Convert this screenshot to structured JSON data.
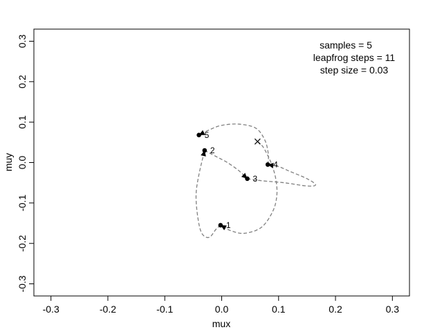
{
  "chart_data": {
    "type": "line",
    "xlabel": "mux",
    "ylabel": "muy",
    "xlim": [
      -0.33,
      0.33
    ],
    "ylim": [
      -0.33,
      0.33
    ],
    "x_ticks": [
      -0.3,
      -0.2,
      -0.1,
      0.0,
      0.1,
      0.2,
      0.3
    ],
    "x_tick_labels": [
      "-0.3",
      "-0.2",
      "-0.1",
      "0.0",
      "0.1",
      "0.2",
      "0.3"
    ],
    "y_ticks": [
      -0.3,
      -0.2,
      -0.1,
      0.0,
      0.1,
      0.2,
      0.3
    ],
    "y_tick_labels": [
      "-0.3",
      "-0.2",
      "-0.1",
      "0.0",
      "0.1",
      "0.2",
      "0.3"
    ],
    "grid": false,
    "annotations": [
      "samples = 5",
      "leapfrog steps = 11",
      "step size = 0.03"
    ],
    "start": {
      "x": 0.063,
      "y": 0.052
    },
    "samples": [
      {
        "label": "1",
        "x": -0.002,
        "y": -0.155
      },
      {
        "label": "2",
        "x": -0.03,
        "y": 0.03
      },
      {
        "label": "3",
        "x": 0.045,
        "y": -0.04
      },
      {
        "label": "4",
        "x": 0.081,
        "y": -0.005
      },
      {
        "label": "5",
        "x": -0.04,
        "y": 0.068
      }
    ],
    "trajectories": [
      [
        [
          0.063,
          0.052
        ],
        [
          0.072,
          0.04
        ],
        [
          0.08,
          0.02
        ],
        [
          0.088,
          -0.005
        ],
        [
          0.095,
          -0.04
        ],
        [
          0.097,
          -0.08
        ],
        [
          0.09,
          -0.12
        ],
        [
          0.07,
          -0.16
        ],
        [
          0.04,
          -0.175
        ],
        [
          0.015,
          -0.168
        ],
        [
          -0.002,
          -0.155
        ]
      ],
      [
        [
          -0.002,
          -0.155
        ],
        [
          -0.01,
          -0.165
        ],
        [
          -0.022,
          -0.185
        ],
        [
          -0.035,
          -0.175
        ],
        [
          -0.042,
          -0.135
        ],
        [
          -0.045,
          -0.08
        ],
        [
          -0.04,
          -0.03
        ],
        [
          -0.03,
          0.03
        ]
      ],
      [
        [
          -0.03,
          0.03
        ],
        [
          -0.01,
          0.015
        ],
        [
          0.01,
          0.0
        ],
        [
          0.03,
          -0.02
        ],
        [
          0.045,
          -0.04
        ]
      ],
      [
        [
          0.045,
          -0.04
        ],
        [
          0.07,
          -0.045
        ],
        [
          0.11,
          -0.05
        ],
        [
          0.15,
          -0.058
        ],
        [
          0.165,
          -0.055
        ],
        [
          0.15,
          -0.04
        ],
        [
          0.12,
          -0.022
        ],
        [
          0.1,
          -0.01
        ],
        [
          0.081,
          -0.005
        ]
      ],
      [
        [
          0.081,
          -0.005
        ],
        [
          0.082,
          0.02
        ],
        [
          0.076,
          0.055
        ],
        [
          0.06,
          0.085
        ],
        [
          0.03,
          0.095
        ],
        [
          0.0,
          0.092
        ],
        [
          -0.02,
          0.082
        ],
        [
          -0.04,
          0.068
        ]
      ]
    ]
  }
}
